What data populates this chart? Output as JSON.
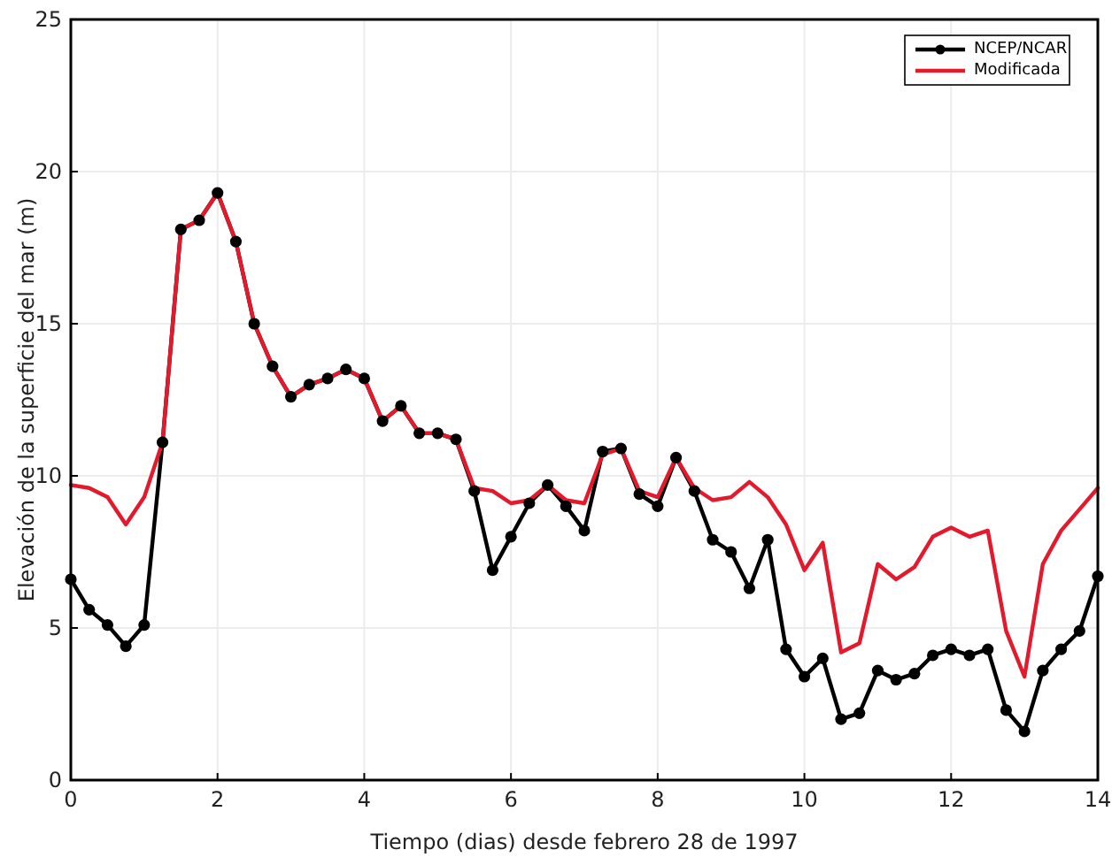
{
  "chart_data": {
    "type": "line",
    "xlabel": "Tiempo (dias) desde febrero 28 de 1997",
    "ylabel": "Elevación de la superficie del mar (m)",
    "x": [
      0,
      0.25,
      0.5,
      0.75,
      1,
      1.25,
      1.5,
      1.75,
      2,
      2.25,
      2.5,
      2.75,
      3,
      3.25,
      3.5,
      3.75,
      4,
      4.25,
      4.5,
      4.75,
      5,
      5.25,
      5.5,
      5.75,
      6,
      6.25,
      6.5,
      6.75,
      7,
      7.25,
      7.5,
      7.75,
      8,
      8.25,
      8.5,
      8.75,
      9,
      9.25,
      9.5,
      9.75,
      10,
      10.25,
      10.5,
      10.75,
      11,
      11.25,
      11.5,
      11.75,
      12,
      12.25,
      12.5,
      12.75,
      13,
      13.25,
      13.5,
      13.75,
      14
    ],
    "series": [
      {
        "name": "NCEP/NCAR",
        "color": "#000000",
        "marker": "circle",
        "values": [
          6.6,
          5.6,
          5.1,
          4.4,
          5.1,
          11.1,
          18.1,
          18.4,
          19.3,
          17.7,
          15.0,
          13.6,
          12.6,
          13.0,
          13.2,
          13.5,
          13.2,
          11.8,
          12.3,
          11.4,
          11.4,
          11.2,
          9.5,
          6.9,
          8.0,
          9.1,
          9.7,
          9.0,
          8.2,
          10.8,
          10.9,
          9.4,
          9.0,
          10.6,
          9.5,
          7.9,
          7.5,
          6.3,
          7.9,
          4.3,
          3.4,
          4.0,
          2.0,
          2.2,
          3.6,
          3.3,
          3.5,
          4.1,
          4.3,
          4.1,
          4.3,
          2.3,
          1.6,
          3.6,
          4.3,
          4.9,
          6.7
        ]
      },
      {
        "name": "Modificada",
        "color": "#e3192c",
        "marker": "none",
        "values": [
          9.7,
          9.6,
          9.3,
          8.4,
          9.3,
          11.1,
          18.1,
          18.4,
          19.3,
          17.7,
          15.0,
          13.6,
          12.6,
          13.0,
          13.2,
          13.5,
          13.2,
          11.8,
          12.3,
          11.4,
          11.4,
          11.2,
          9.6,
          9.5,
          9.1,
          9.2,
          9.7,
          9.2,
          9.1,
          10.7,
          10.9,
          9.5,
          9.3,
          10.6,
          9.6,
          9.2,
          9.3,
          9.8,
          9.3,
          8.4,
          6.9,
          7.8,
          4.2,
          4.5,
          7.1,
          6.6,
          7.0,
          8.0,
          8.3,
          8.0,
          8.2,
          4.9,
          3.4,
          7.1,
          8.2,
          8.9,
          9.6
        ]
      }
    ],
    "xlim": [
      0,
      14
    ],
    "xticks": [
      0,
      2,
      4,
      6,
      8,
      10,
      12,
      14
    ],
    "ylim": [
      0,
      25
    ],
    "yticks": [
      0,
      5,
      10,
      15,
      20,
      25
    ],
    "grid": true,
    "legend": "top right",
    "line_style": "solid"
  }
}
